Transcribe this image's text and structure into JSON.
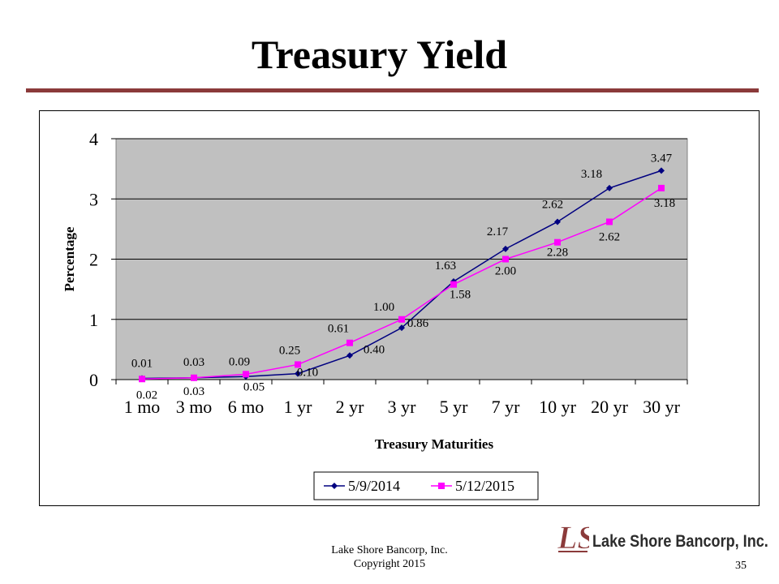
{
  "slide": {
    "title": "Treasury Yield",
    "footer_line1": "Lake Shore Bancorp, Inc.",
    "footer_line2": "Copyright 2015",
    "page_number": "35",
    "logo_text": "Lake Shore Bancorp, Inc.",
    "logo_letters": "LS",
    "accent_color": "#8b3a3a"
  },
  "chart_data": {
    "type": "line",
    "title": "",
    "xlabel": "Treasury Maturities",
    "ylabel": "Percentage",
    "categories": [
      "1 mo",
      "3 mo",
      "6 mo",
      "1 yr",
      "2 yr",
      "3 yr",
      "5 yr",
      "7 yr",
      "10 yr",
      "20 yr",
      "30 yr"
    ],
    "ylim": [
      0,
      4
    ],
    "yticks": [
      "0",
      "1",
      "2",
      "3",
      "4"
    ],
    "grid": true,
    "plot_background": "#c0c0c0",
    "legend_position": "bottom",
    "series": [
      {
        "name": "5/9/2014",
        "color": "#000080",
        "marker": "diamond",
        "values": [
          0.02,
          0.03,
          0.05,
          0.1,
          0.4,
          0.86,
          1.63,
          2.17,
          2.62,
          3.18,
          3.47
        ],
        "labels": [
          "0.02",
          "0.03",
          "0.05",
          "0.10",
          "0.40",
          "0.86",
          "1.63",
          "2.17",
          "2.62",
          "3.18",
          "3.47"
        ]
      },
      {
        "name": "5/12/2015",
        "color": "#ff00ff",
        "marker": "square",
        "values": [
          0.01,
          0.03,
          0.09,
          0.25,
          0.61,
          1.0,
          1.58,
          2.0,
          2.28,
          2.62,
          3.18
        ],
        "labels": [
          "0.01",
          "0.03",
          "0.09",
          "0.25",
          "0.61",
          "1.00",
          "1.58",
          "2.00",
          "2.28",
          "2.62",
          "3.18"
        ]
      }
    ]
  }
}
